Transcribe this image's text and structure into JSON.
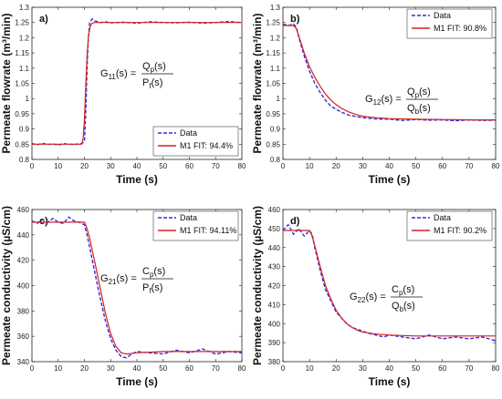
{
  "chart_data": [
    {
      "type": "line",
      "panel_label": "a)",
      "xlabel": "Time (s)",
      "ylabel": "Permeate flowrate (m³/min)",
      "xlim": [
        0,
        80
      ],
      "ylim": [
        0.8,
        1.3
      ],
      "xticks": [
        "0",
        "10",
        "20",
        "30",
        "40",
        "50",
        "60",
        "70",
        "80"
      ],
      "yticks": [
        "0.8",
        "0.85",
        "0.9",
        "0.95",
        "1",
        "1.05",
        "1.1",
        "1.15",
        "1.2",
        "1.25",
        "1.3"
      ],
      "equation": {
        "lhs": "G",
        "lhs_sub": "11",
        "arg": "(s) =",
        "num": "Q",
        "num_sub": "p",
        "num_tail": "(s)",
        "den": "P",
        "den_sub": "f",
        "den_tail": "(s)"
      },
      "legend": {
        "position": "bottom-right",
        "entries": [
          "Data",
          "M1 FIT: 94.4%"
        ]
      },
      "series": [
        {
          "name": "Data",
          "style": "dashed",
          "color": "#3a2bd6",
          "x": [
            0,
            2,
            4,
            6,
            8,
            10,
            12,
            14,
            16,
            18,
            19,
            20,
            20.5,
            21,
            21.5,
            22,
            23,
            24,
            26,
            28,
            30,
            35,
            40,
            45,
            50,
            55,
            60,
            65,
            70,
            75,
            80
          ],
          "y": [
            0.852,
            0.848,
            0.853,
            0.849,
            0.851,
            0.847,
            0.852,
            0.85,
            0.849,
            0.851,
            0.852,
            0.86,
            0.95,
            1.1,
            1.2,
            1.25,
            1.262,
            1.255,
            1.25,
            1.252,
            1.249,
            1.251,
            1.248,
            1.252,
            1.25,
            1.249,
            1.251,
            1.248,
            1.25,
            1.253,
            1.25
          ]
        },
        {
          "name": "M1 FIT: 94.4%",
          "style": "solid",
          "color": "#d62020",
          "x": [
            0,
            19,
            19.5,
            20,
            20.5,
            21,
            21.5,
            22,
            22.5,
            23,
            24,
            26,
            28,
            30,
            40,
            50,
            60,
            70,
            80
          ],
          "y": [
            0.85,
            0.85,
            0.87,
            0.93,
            1.04,
            1.14,
            1.2,
            1.23,
            1.243,
            1.248,
            1.25,
            1.25,
            1.25,
            1.25,
            1.25,
            1.25,
            1.25,
            1.25,
            1.25
          ]
        }
      ]
    },
    {
      "type": "line",
      "panel_label": "b)",
      "xlabel": "Time (s)",
      "ylabel": "Permeate flowrate (m³/min)",
      "xlim": [
        0,
        80
      ],
      "ylim": [
        0.8,
        1.3
      ],
      "xticks": [
        "0",
        "10",
        "20",
        "30",
        "40",
        "50",
        "60",
        "70",
        "80"
      ],
      "yticks": [
        "0.8",
        "0.85",
        "0.9",
        "0.95",
        "1",
        "1.05",
        "1.1",
        "1.15",
        "1.2",
        "1.25",
        "1.3"
      ],
      "equation": {
        "lhs": "G",
        "lhs_sub": "12",
        "arg": "(s) =",
        "num": "Q",
        "num_sub": "p",
        "num_tail": "(s)",
        "den": "Q",
        "den_sub": "b",
        "den_tail": "(s)"
      },
      "legend": {
        "position": "top-right",
        "entries": [
          "Data",
          "M1 FIT: 90.8%"
        ]
      },
      "series": [
        {
          "name": "Data",
          "style": "dashed",
          "color": "#3a2bd6",
          "x": [
            0,
            2,
            4,
            5,
            6,
            8,
            10,
            12,
            14,
            16,
            18,
            20,
            22,
            25,
            28,
            30,
            35,
            40,
            45,
            50,
            55,
            60,
            65,
            70,
            75,
            80
          ],
          "y": [
            1.245,
            1.24,
            1.245,
            1.235,
            1.2,
            1.14,
            1.09,
            1.05,
            1.02,
            0.995,
            0.975,
            0.965,
            0.955,
            0.945,
            0.94,
            0.937,
            0.933,
            0.932,
            0.928,
            0.931,
            0.929,
            0.93,
            0.927,
            0.93,
            0.928,
            0.929
          ]
        },
        {
          "name": "M1 FIT: 90.8%",
          "style": "solid",
          "color": "#d62020",
          "x": [
            0,
            4,
            5,
            6,
            8,
            10,
            12,
            14,
            16,
            18,
            20,
            22,
            25,
            28,
            30,
            35,
            40,
            50,
            60,
            70,
            80
          ],
          "y": [
            1.24,
            1.24,
            1.23,
            1.205,
            1.15,
            1.105,
            1.07,
            1.04,
            1.015,
            0.995,
            0.98,
            0.968,
            0.955,
            0.946,
            0.942,
            0.937,
            0.934,
            0.932,
            0.931,
            0.93,
            0.93
          ]
        }
      ]
    },
    {
      "type": "line",
      "panel_label": "c)",
      "xlabel": "Time (s)",
      "ylabel": "Permeate conductivity (µS/cm)",
      "xlim": [
        0,
        80
      ],
      "ylim": [
        340,
        460
      ],
      "xticks": [
        "0",
        "10",
        "20",
        "30",
        "40",
        "50",
        "60",
        "70",
        "80"
      ],
      "yticks": [
        "340",
        "360",
        "380",
        "400",
        "420",
        "440",
        "460"
      ],
      "equation": {
        "lhs": "G",
        "lhs_sub": "21",
        "arg": "(s) =",
        "num": "C",
        "num_sub": "p",
        "num_tail": "(s)",
        "den": "P",
        "den_sub": "f",
        "den_tail": "(s)"
      },
      "legend": {
        "position": "top-right",
        "entries": [
          "Data",
          "M1 FIT: 94.11%"
        ]
      },
      "series": [
        {
          "name": "Data",
          "style": "dashed",
          "color": "#3a2bd6",
          "x": [
            0,
            2,
            4,
            6,
            8,
            10,
            12,
            14,
            16,
            18,
            20,
            21,
            22,
            24,
            26,
            28,
            30,
            32,
            34,
            36,
            38,
            40,
            45,
            50,
            55,
            60,
            65,
            70,
            75,
            80
          ],
          "y": [
            451,
            449,
            452,
            450,
            453,
            450,
            449,
            454,
            451,
            450,
            448,
            440,
            430,
            410,
            390,
            372,
            358,
            349,
            344,
            343,
            346,
            348,
            347,
            346,
            349,
            347,
            350,
            346,
            348,
            347
          ]
        },
        {
          "name": "M1 FIT: 94.11%",
          "style": "solid",
          "color": "#d62020",
          "x": [
            0,
            20,
            21,
            22,
            24,
            26,
            28,
            30,
            32,
            34,
            36,
            40,
            50,
            60,
            70,
            80
          ],
          "y": [
            450,
            450,
            445,
            437,
            418,
            398,
            378,
            362,
            352,
            347,
            346,
            347,
            348,
            348,
            348,
            348
          ]
        }
      ]
    },
    {
      "type": "line",
      "panel_label": "d)",
      "xlabel": "Time (s)",
      "ylabel": "Permeate conductivity (µS/cm)",
      "xlim": [
        0,
        80
      ],
      "ylim": [
        380,
        460
      ],
      "xticks": [
        "0",
        "10",
        "20",
        "30",
        "40",
        "50",
        "60",
        "70",
        "80"
      ],
      "yticks": [
        "380",
        "390",
        "400",
        "410",
        "420",
        "430",
        "440",
        "450",
        "460"
      ],
      "equation": {
        "lhs": "G",
        "lhs_sub": "22",
        "arg": "(s) =",
        "num": "C",
        "num_sub": "p",
        "num_tail": "(s)",
        "den": "Q",
        "den_sub": "b",
        "den_tail": "(s)"
      },
      "legend": {
        "position": "top-right",
        "entries": [
          "Data",
          "M1 FIT: 90.2%"
        ]
      },
      "series": [
        {
          "name": "Data",
          "style": "dashed",
          "color": "#3a2bd6",
          "x": [
            0,
            2,
            4,
            6,
            8,
            10,
            11,
            12,
            14,
            16,
            18,
            20,
            22,
            24,
            26,
            28,
            30,
            32,
            35,
            38,
            40,
            45,
            50,
            55,
            60,
            65,
            70,
            75,
            80
          ],
          "y": [
            449,
            452,
            447,
            450,
            446,
            449,
            447,
            440,
            428,
            418,
            412,
            406,
            403,
            400,
            398,
            397,
            396,
            395,
            394,
            393,
            394,
            393,
            392,
            394,
            392,
            393,
            392,
            393,
            391
          ]
        },
        {
          "name": "M1 FIT: 90.2%",
          "style": "solid",
          "color": "#d62020",
          "x": [
            0,
            10,
            11,
            12,
            14,
            16,
            18,
            20,
            22,
            24,
            26,
            28,
            30,
            35,
            40,
            50,
            60,
            70,
            80
          ],
          "y": [
            449,
            449,
            446,
            441,
            430,
            420,
            413,
            407,
            403,
            400,
            398,
            396.5,
            395.5,
            394.5,
            394,
            393.5,
            393.5,
            393.5,
            393.5
          ]
        }
      ]
    }
  ]
}
